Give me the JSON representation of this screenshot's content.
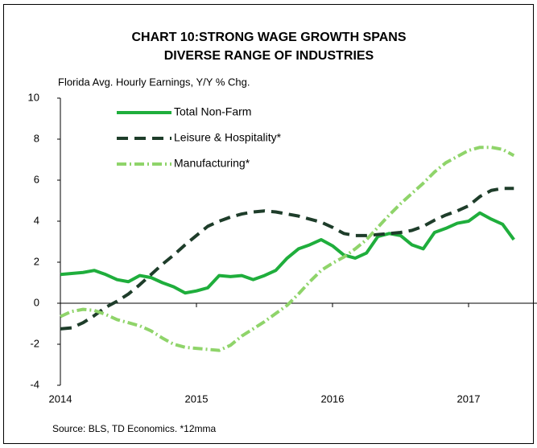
{
  "chart_data": {
    "type": "line",
    "title": "CHART 10:STRONG WAGE GROWTH SPANS",
    "title_line2": "DIVERSE RANGE OF INDUSTRIES",
    "subtitle": "Florida Avg. Hourly Earnings, Y/Y % Chg.",
    "source": "Source: BLS, TD Economics. *12mma",
    "x": [
      2014,
      2014.083,
      2014.167,
      2014.25,
      2014.333,
      2014.417,
      2014.5,
      2014.583,
      2014.667,
      2014.75,
      2014.833,
      2014.917,
      2015,
      2015.083,
      2015.167,
      2015.25,
      2015.333,
      2015.417,
      2015.5,
      2015.583,
      2015.667,
      2015.75,
      2015.833,
      2015.917,
      2016,
      2016.083,
      2016.167,
      2016.25,
      2016.333,
      2016.417,
      2016.5,
      2016.583,
      2016.667,
      2016.75,
      2016.833,
      2016.917,
      2017,
      2017.083,
      2017.167,
      2017.25,
      2017.333
    ],
    "xlim": [
      2014,
      2017.55
    ],
    "xticks": [
      2014,
      2015,
      2016,
      2017
    ],
    "ylim": [
      -4,
      10
    ],
    "yticks": [
      -4,
      -2,
      0,
      2,
      4,
      6,
      8,
      10
    ],
    "grid": false,
    "legend": "top-left",
    "series": [
      {
        "name": "Total Non-Farm",
        "color": "#1fae3c",
        "dash": "solid",
        "values": [
          1.4,
          1.45,
          1.5,
          1.6,
          1.4,
          1.15,
          1.05,
          1.35,
          1.25,
          1.0,
          0.8,
          0.5,
          0.6,
          0.75,
          1.35,
          1.3,
          1.35,
          1.15,
          1.35,
          1.6,
          2.2,
          2.65,
          2.85,
          3.1,
          2.8,
          2.35,
          2.2,
          2.45,
          3.25,
          3.4,
          3.3,
          2.85,
          2.65,
          3.45,
          3.65,
          3.9,
          4.0,
          4.4,
          4.1,
          3.85,
          3.1
        ]
      },
      {
        "name": "Leisure & Hospitality*",
        "color": "#1e3d2a",
        "dash": "dashed",
        "values": [
          -1.25,
          -1.2,
          -0.95,
          -0.6,
          -0.2,
          0.1,
          0.45,
          0.9,
          1.4,
          1.9,
          2.35,
          2.85,
          3.3,
          3.75,
          4.0,
          4.2,
          4.35,
          4.45,
          4.5,
          4.45,
          4.35,
          4.25,
          4.1,
          3.95,
          3.7,
          3.4,
          3.3,
          3.3,
          3.35,
          3.4,
          3.45,
          3.55,
          3.75,
          4.05,
          4.3,
          4.5,
          4.75,
          5.2,
          5.5,
          5.6,
          5.6
        ]
      },
      {
        "name": "Manufacturing*",
        "color": "#8fd46a",
        "dash": "dashdot",
        "values": [
          -0.65,
          -0.4,
          -0.3,
          -0.35,
          -0.55,
          -0.8,
          -0.95,
          -1.1,
          -1.35,
          -1.7,
          -2.0,
          -2.15,
          -2.2,
          -2.25,
          -2.3,
          -2.05,
          -1.6,
          -1.25,
          -0.9,
          -0.5,
          -0.1,
          0.45,
          1.05,
          1.6,
          1.95,
          2.25,
          2.65,
          3.1,
          3.7,
          4.3,
          4.85,
          5.35,
          5.85,
          6.4,
          6.85,
          7.15,
          7.45,
          7.6,
          7.6,
          7.5,
          7.2
        ]
      }
    ]
  }
}
